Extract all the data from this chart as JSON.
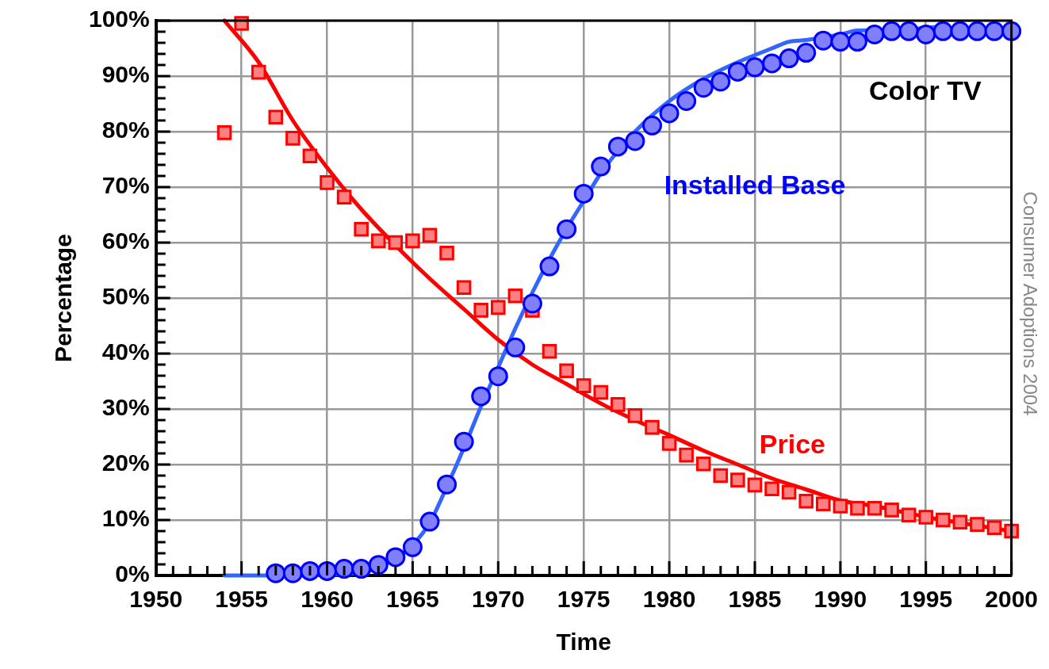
{
  "chart_data": {
    "type": "scatter",
    "xlabel": "Time",
    "ylabel": "Percentage",
    "annotations": [
      "Color TV",
      "Consumer Adoptions 2004"
    ],
    "xlim": [
      1950,
      2000
    ],
    "xticks": [
      1950,
      {
        "value": 1951,
        "label": null
      },
      {
        "value": 1952,
        "label": null
      },
      {
        "value": 1953,
        "label": null
      },
      {
        "value": 1954,
        "label": null
      },
      1955,
      {
        "value": 1956,
        "label": null
      },
      {
        "value": 1957,
        "label": null
      },
      {
        "value": 1958,
        "label": null
      },
      {
        "value": 1959,
        "label": null
      },
      1960,
      {
        "value": 1961,
        "label": null
      },
      {
        "value": 1962,
        "label": null
      },
      {
        "value": 1963,
        "label": null
      },
      {
        "value": 1964,
        "label": null
      },
      1965,
      {
        "value": 1966,
        "label": null
      },
      {
        "value": 1967,
        "label": null
      },
      {
        "value": 1968,
        "label": null
      },
      {
        "value": 1969,
        "label": null
      },
      1970,
      {
        "value": 1971,
        "label": null
      },
      {
        "value": 1972,
        "label": null
      },
      {
        "value": 1973,
        "label": null
      },
      {
        "value": 1974,
        "label": null
      },
      1975,
      {
        "value": 1976,
        "label": null
      },
      {
        "value": 1977,
        "label": null
      },
      {
        "value": 1978,
        "label": null
      },
      {
        "value": 1979,
        "label": null
      },
      1980,
      {
        "value": 1981,
        "label": null
      },
      {
        "value": 1982,
        "label": null
      },
      {
        "value": 1983,
        "label": null
      },
      {
        "value": 1984,
        "label": null
      },
      1985,
      {
        "value": 1986,
        "label": null
      },
      {
        "value": 1987,
        "label": null
      },
      {
        "value": 1988,
        "label": null
      },
      {
        "value": 1989,
        "label": null
      },
      1990,
      {
        "value": 1991,
        "label": null
      },
      {
        "value": 1992,
        "label": null
      },
      {
        "value": 1993,
        "label": null
      },
      {
        "value": 1994,
        "label": null
      },
      1995,
      {
        "value": 1996,
        "label": null
      },
      {
        "value": 1997,
        "label": null
      },
      {
        "value": 1998,
        "label": null
      },
      {
        "value": 1999,
        "label": null
      },
      2000
    ],
    "ylim": [
      0,
      100
    ],
    "yticks": [
      {
        "value": 0,
        "label": "0%"
      },
      {
        "value": 2,
        "label": null
      },
      {
        "value": 4,
        "label": null
      },
      {
        "value": 6,
        "label": null
      },
      {
        "value": 8,
        "label": null
      },
      {
        "value": 10,
        "label": "10%"
      },
      {
        "value": 12,
        "label": null
      },
      {
        "value": 14,
        "label": null
      },
      {
        "value": 16,
        "label": null
      },
      {
        "value": 18,
        "label": null
      },
      {
        "value": 20,
        "label": "20%"
      },
      {
        "value": 22,
        "label": null
      },
      {
        "value": 24,
        "label": null
      },
      {
        "value": 26,
        "label": null
      },
      {
        "value": 28,
        "label": null
      },
      {
        "value": 30,
        "label": "30%"
      },
      {
        "value": 32,
        "label": null
      },
      {
        "value": 34,
        "label": null
      },
      {
        "value": 36,
        "label": null
      },
      {
        "value": 38,
        "label": null
      },
      {
        "value": 40,
        "label": "40%"
      },
      {
        "value": 42,
        "label": null
      },
      {
        "value": 44,
        "label": null
      },
      {
        "value": 46,
        "label": null
      },
      {
        "value": 48,
        "label": null
      },
      {
        "value": 50,
        "label": "50%"
      },
      {
        "value": 52,
        "label": null
      },
      {
        "value": 54,
        "label": null
      },
      {
        "value": 56,
        "label": null
      },
      {
        "value": 58,
        "label": null
      },
      {
        "value": 60,
        "label": "60%"
      },
      {
        "value": 62,
        "label": null
      },
      {
        "value": 64,
        "label": null
      },
      {
        "value": 66,
        "label": null
      },
      {
        "value": 68,
        "label": null
      },
      {
        "value": 70,
        "label": "70%"
      },
      {
        "value": 72,
        "label": null
      },
      {
        "value": 74,
        "label": null
      },
      {
        "value": 76,
        "label": null
      },
      {
        "value": 78,
        "label": null
      },
      {
        "value": 80,
        "label": "80%"
      },
      {
        "value": 82,
        "label": null
      },
      {
        "value": 84,
        "label": null
      },
      {
        "value": 86,
        "label": null
      },
      {
        "value": 88,
        "label": null
      },
      {
        "value": 90,
        "label": "90%"
      },
      {
        "value": 92,
        "label": null
      },
      {
        "value": 94,
        "label": null
      },
      {
        "value": 96,
        "label": null
      },
      {
        "value": 98,
        "label": null
      },
      {
        "value": 100,
        "label": "100%"
      }
    ],
    "grid": true,
    "legend": false,
    "series": [
      {
        "type": "line",
        "color": "#ff0000",
        "line_style": "solid",
        "x": [
          1954,
          1956,
          1958,
          1960,
          1962,
          1964,
          1966,
          1968,
          1970,
          1972,
          1974,
          1976,
          1978,
          1980,
          1982,
          1984,
          1986,
          1988,
          1990,
          1992,
          1994,
          1996,
          1998,
          2000
        ],
        "values": [
          100,
          92.5,
          82,
          73.5,
          66,
          59.5,
          53.5,
          48,
          42.5,
          38,
          34.5,
          31,
          28,
          25.3,
          22.5,
          20,
          17.5,
          15.5,
          13.5,
          12.5,
          11.2,
          10,
          9,
          8
        ]
      },
      {
        "type": "line",
        "color": "#3366ff",
        "line_style": "solid",
        "x": [
          1954,
          1957,
          1962,
          1963,
          1964,
          1965,
          1966,
          1967,
          1968,
          1969,
          1970,
          1971,
          1972,
          1973,
          1974,
          1975,
          1976,
          1977,
          1978,
          1980,
          1982,
          1984,
          1986,
          1987,
          1988,
          1990,
          1991,
          1993,
          1995,
          1996
        ],
        "values": [
          0,
          0,
          0.5,
          1.5,
          3,
          5.5,
          9.5,
          16,
          23,
          30.5,
          37.5,
          44.5,
          51,
          57,
          62.5,
          67.5,
          72.5,
          76.5,
          80,
          85.5,
          89.5,
          92.5,
          95,
          96.2,
          96.5,
          97.5,
          98.2,
          98.3,
          98.7,
          99
        ]
      },
      {
        "type": "scatter",
        "name": "Price",
        "color": "#ff0000",
        "marker": "square",
        "x": [
          1954,
          1955,
          1956,
          1957,
          1958,
          1959,
          1960,
          1961,
          1962,
          1963,
          1964,
          1965,
          1966,
          1967,
          1968,
          1969,
          1970,
          1971,
          1972,
          1973,
          1974,
          1975,
          1976,
          1977,
          1978,
          1979,
          1980,
          1981,
          1982,
          1983,
          1984,
          1985,
          1986,
          1987,
          1988,
          1989,
          1990,
          1991,
          1992,
          1993,
          1994,
          1995,
          1996,
          1997,
          1998,
          1999,
          2000
        ],
        "values": [
          79.8,
          99.5,
          90.7,
          82.6,
          78.8,
          75.6,
          70.8,
          68.2,
          62.4,
          60.3,
          60,
          60.3,
          61.3,
          58.1,
          51.9,
          47.8,
          48.3,
          50.4,
          47.8,
          40.4,
          36.9,
          34.2,
          33,
          30.8,
          28.8,
          26.7,
          23.8,
          21.7,
          20.1,
          18,
          17.2,
          16.3,
          15.6,
          15,
          13.4,
          12.9,
          12.5,
          12.1,
          12.1,
          11.8,
          10.9,
          10.5,
          10,
          9.6,
          9.2,
          8.6,
          8
        ]
      },
      {
        "type": "scatter",
        "name": "Installed Base",
        "color": "#0000ff",
        "marker": "circle",
        "x": [
          1957,
          1958,
          1959,
          1960,
          1961,
          1962,
          1963,
          1964,
          1965,
          1966,
          1967,
          1968,
          1969,
          1970,
          1971,
          1972,
          1973,
          1974,
          1975,
          1976,
          1977,
          1978,
          1979,
          1980,
          1981,
          1982,
          1983,
          1984,
          1985,
          1986,
          1987,
          1988,
          1989,
          1990,
          1991,
          1992,
          1993,
          1994,
          1995,
          1996,
          1997,
          1998,
          1999,
          2000
        ],
        "values": [
          0.4,
          0.4,
          0.8,
          0.8,
          1.2,
          1.2,
          1.9,
          3.3,
          5.1,
          9.7,
          16.4,
          24.1,
          32.3,
          35.9,
          41.1,
          49,
          55.7,
          62.4,
          68.8,
          73.7,
          77.3,
          78.3,
          81.1,
          83.3,
          85.5,
          87.9,
          89,
          90.8,
          91.6,
          92.3,
          93.2,
          94.2,
          96.4,
          96.2,
          96.2,
          97.5,
          98.1,
          98.1,
          97.5,
          98.1,
          98.1,
          98.1,
          98.1,
          98.1
        ]
      }
    ]
  }
}
